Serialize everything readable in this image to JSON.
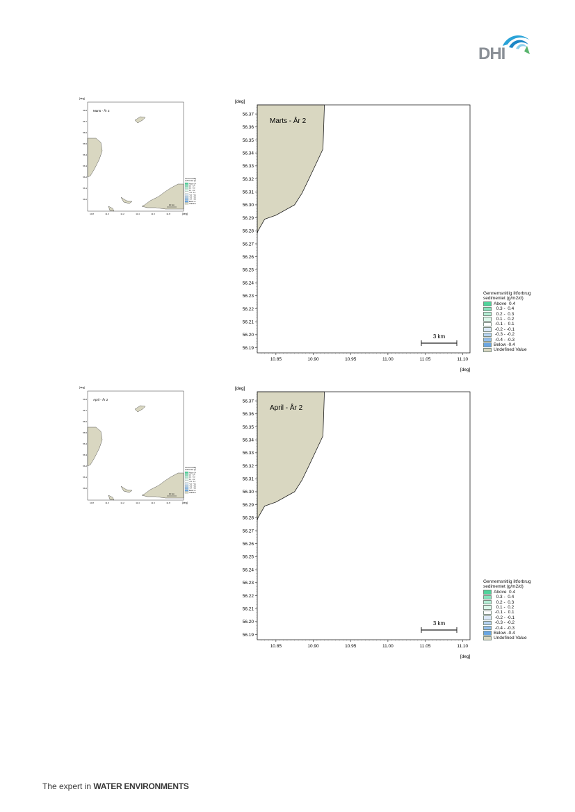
{
  "brand": {
    "logo_text": "DHI",
    "tagline_prefix": "The expert in ",
    "tagline_bold": "WATER ENVIRONMENTS"
  },
  "axis_unit": "[deg]",
  "legend": {
    "title_line1": "Gennemsnitlig iltforbrug",
    "title_line2": "sedimentet (g/m2/d)",
    "items": [
      {
        "label": "Above  0.4",
        "color": "#4fd39a"
      },
      {
        "label": "  0.3 -  0.4",
        "color": "#86e3bc"
      },
      {
        "label": "  0.2 -  0.3",
        "color": "#b4eed5"
      },
      {
        "label": "  0.1 -  0.2",
        "color": "#dcf7ea"
      },
      {
        "label": " -0.1 -  0.1",
        "color": "#ffffff"
      },
      {
        "label": " -0.2 - -0.1",
        "color": "#dbe8f7"
      },
      {
        "label": " -0.3 - -0.2",
        "color": "#b7d3f0"
      },
      {
        "label": " -0.4 - -0.3",
        "color": "#92bdea"
      },
      {
        "label": "Below -0.4",
        "color": "#6aa6e2"
      },
      {
        "label": "Undefined Value",
        "color": "#d9d7c1"
      }
    ]
  },
  "panels": [
    {
      "title": "Marts - År 2",
      "thumb_title": "Marts - År 2",
      "x_ticks": [
        "10.85",
        "10.90",
        "10.95",
        "11.00",
        "11.05",
        "11.10"
      ],
      "y_ticks": [
        "56.37",
        "56.36",
        "56.35",
        "56.34",
        "56.33",
        "56.32",
        "56.31",
        "56.30",
        "56.29",
        "56.28",
        "56.27",
        "56.26",
        "56.25",
        "56.24",
        "56.23",
        "56.22",
        "56.21",
        "56.20",
        "56.19"
      ],
      "scale_label": "3 km",
      "thumb_x_ticks": [
        "10.8",
        "11.0",
        "11.2",
        "11.4",
        "11.6",
        "11.8"
      ],
      "thumb_y_ticks": [
        "56.8",
        "56.7",
        "56.6",
        "56.5",
        "56.4",
        "56.3",
        "56.2",
        "56.1",
        "56.0"
      ],
      "thumb_scale_label": "10 km"
    },
    {
      "title": "April - År 2",
      "thumb_title": "April - År 2",
      "x_ticks": [
        "10.85",
        "10.90",
        "10.95",
        "11.00",
        "11.05",
        "11.10"
      ],
      "y_ticks": [
        "56.37",
        "56.36",
        "56.35",
        "56.34",
        "56.33",
        "56.32",
        "56.31",
        "56.30",
        "56.29",
        "56.28",
        "56.27",
        "56.26",
        "56.25",
        "56.24",
        "56.23",
        "56.22",
        "56.21",
        "56.20",
        "56.19"
      ],
      "scale_label": "3 km",
      "thumb_x_ticks": [
        "10.8",
        "11.0",
        "11.2",
        "11.4",
        "11.6",
        "11.8"
      ],
      "thumb_y_ticks": [
        "56.8",
        "56.7",
        "56.6",
        "56.5",
        "56.4",
        "56.3",
        "56.2",
        "56.1",
        "56.0"
      ],
      "thumb_scale_label": "10 km"
    }
  ]
}
